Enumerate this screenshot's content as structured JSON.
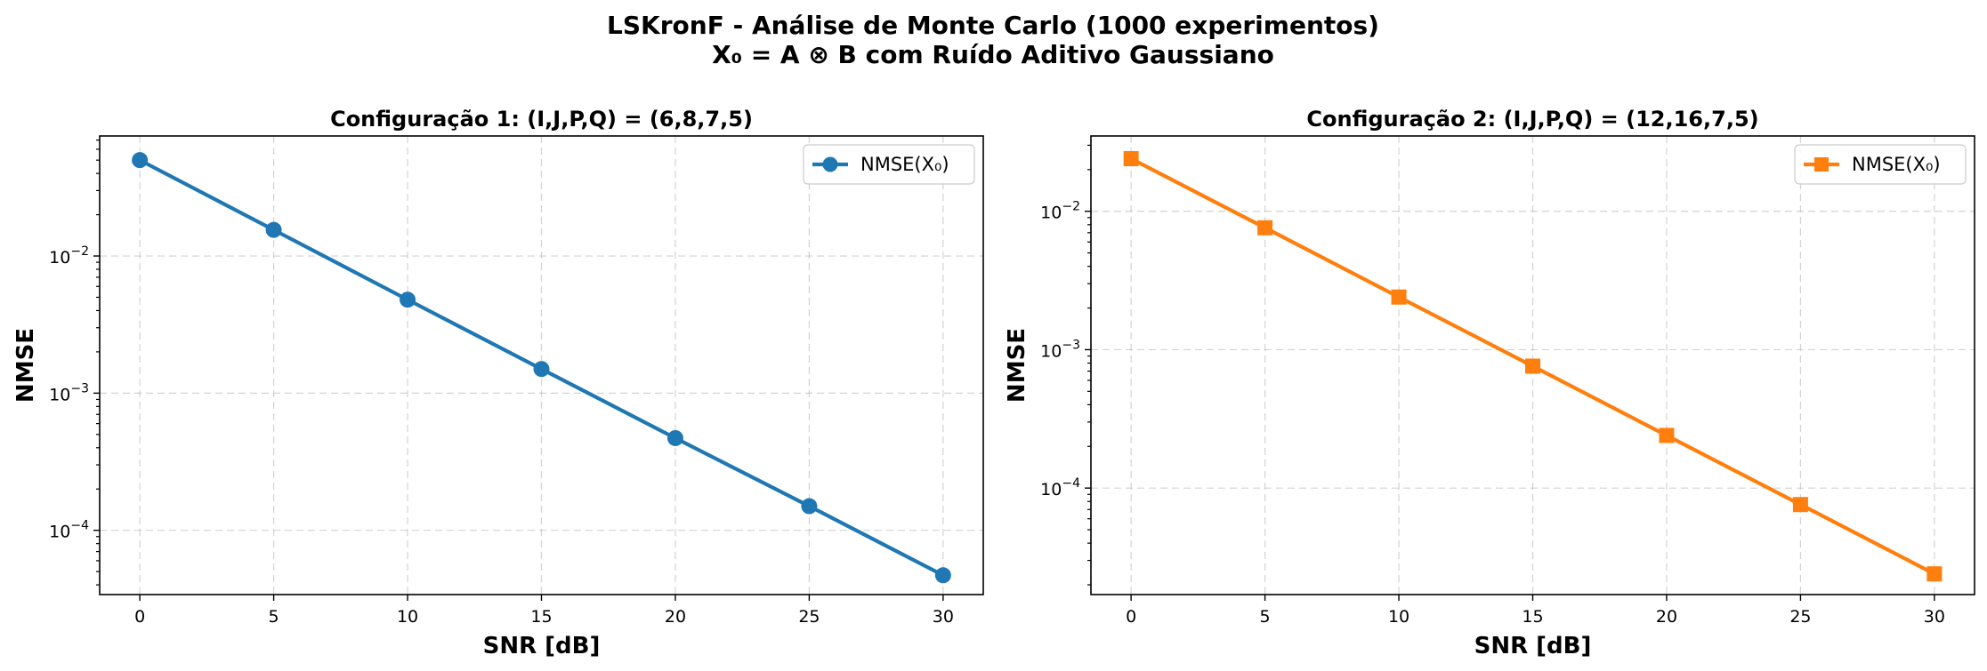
{
  "figure": {
    "title_line1": "LSKronF - Análise de Monte Carlo (1000 experimentos)",
    "title_line2": "X₀ = A ⊗ B com Ruído Aditivo Gaussiano"
  },
  "chart_data": [
    {
      "type": "line",
      "title": "Configuração 1: (I,J,P,Q) = (6,8,7,5)",
      "xlabel": "SNR [dB]",
      "ylabel": "NMSE",
      "yscale": "log",
      "x": [
        0,
        5,
        10,
        15,
        20,
        25,
        30
      ],
      "xticks": [
        0,
        5,
        10,
        15,
        20,
        25,
        30
      ],
      "xlim": [
        -1.5,
        31.5
      ],
      "ylim": [
        3.4e-05,
        0.075
      ],
      "yticks": [
        0.01,
        0.001,
        0.0001
      ],
      "ytick_labels": [
        {
          "base": "10",
          "exp": "−2"
        },
        {
          "base": "10",
          "exp": "−3"
        },
        {
          "base": "10",
          "exp": "−4"
        }
      ],
      "grid": true,
      "legend_position": "top-right",
      "series": [
        {
          "name": "NMSE(X₀)",
          "color": "#1f77b4",
          "marker": "circle",
          "values": [
            0.05,
            0.0155,
            0.0048,
            0.0015,
            0.00047,
            0.00015,
            4.7e-05
          ]
        }
      ]
    },
    {
      "type": "line",
      "title": "Configuração 2: (I,J,P,Q) = (12,16,7,5)",
      "xlabel": "SNR [dB]",
      "ylabel": "NMSE",
      "yscale": "log",
      "x": [
        0,
        5,
        10,
        15,
        20,
        25,
        30
      ],
      "xticks": [
        0,
        5,
        10,
        15,
        20,
        25,
        30
      ],
      "xlim": [
        -1.5,
        31.5
      ],
      "ylim": [
        1.7e-05,
        0.035
      ],
      "yticks": [
        0.01,
        0.001,
        0.0001
      ],
      "ytick_labels": [
        {
          "base": "10",
          "exp": "−2"
        },
        {
          "base": "10",
          "exp": "−3"
        },
        {
          "base": "10",
          "exp": "−4"
        }
      ],
      "grid": true,
      "legend_position": "top-right",
      "series": [
        {
          "name": "NMSE(X₀)",
          "color": "#ff7f0e",
          "marker": "square",
          "values": [
            0.024,
            0.0076,
            0.0024,
            0.00076,
            0.00024,
            7.6e-05,
            2.4e-05
          ]
        }
      ]
    }
  ]
}
